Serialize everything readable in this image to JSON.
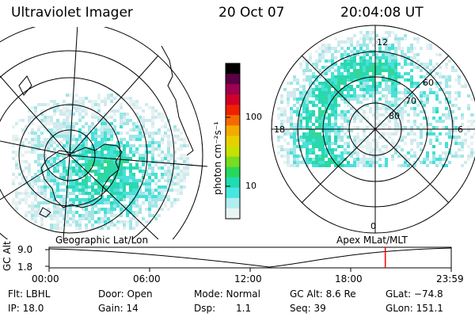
{
  "header": {
    "instrument": "Ultraviolet Imager",
    "date": "20 Oct 07",
    "time": "20:04:08 UT"
  },
  "colorbar": {
    "label": "photon cm⁻²s⁻¹",
    "ticks": [
      "100",
      "10"
    ],
    "colors": [
      "#000000",
      "#5a0045",
      "#a00050",
      "#d0002a",
      "#f02000",
      "#f56a00",
      "#f5aa00",
      "#e8d000",
      "#c8e000",
      "#78dc20",
      "#28d85a",
      "#20dcb0",
      "#48e6e0",
      "#b0eef0",
      "#e8f4f4"
    ]
  },
  "left_panel": {
    "caption": "Geographic Lat/Lon"
  },
  "right_panel": {
    "caption": "Apex MLat/MLT",
    "mlt_labels": [
      "12",
      "18",
      "6",
      "0"
    ],
    "lat_labels": [
      "60",
      "70",
      "80"
    ]
  },
  "timeline": {
    "ylabel": "GC Alt",
    "yticks": [
      "9.0",
      "1.8"
    ],
    "xticks": [
      "00:00",
      "06:00",
      "12:00",
      "18:00",
      "23:59"
    ],
    "current_time_fraction": 0.836,
    "marker_color": "#ff0000"
  },
  "footer": {
    "filter": "Flt: LBHL",
    "ip": "IP: 18.0",
    "door": "Door: Open",
    "gain": "Gain: 14",
    "mode": "Mode: Normal",
    "dsp_label": "Dsp:",
    "dsp_value": "1.1",
    "gc_alt": "GC Alt: 8.6 Re",
    "seq": "Seq: 39",
    "glat": "GLat: −74.8",
    "glon": "GLon: 151.1"
  }
}
